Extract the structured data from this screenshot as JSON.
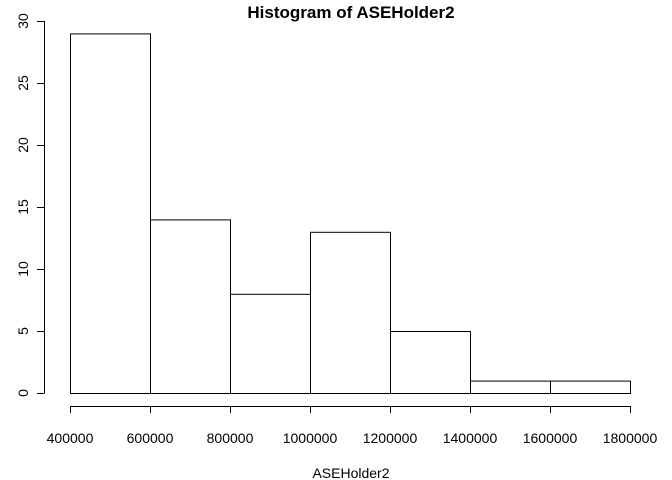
{
  "chart_data": {
    "type": "bar",
    "subtype": "histogram",
    "title": "Histogram of ASEHolder2",
    "xlabel": "ASEHolder2",
    "ylabel": "",
    "bin_edges": [
      400000,
      600000,
      800000,
      1000000,
      1200000,
      1400000,
      1600000,
      1800000
    ],
    "categories": [
      "400000-600000",
      "600000-800000",
      "800000-1000000",
      "1000000-1200000",
      "1200000-1400000",
      "1400000-1600000",
      "1600000-1800000"
    ],
    "values": [
      29,
      14,
      8,
      13,
      5,
      1,
      1
    ],
    "xlim": [
      400000,
      1800000
    ],
    "ylim": [
      0,
      30
    ],
    "xticks": [
      "400000",
      "600000",
      "800000",
      "1000000",
      "1200000",
      "1400000",
      "1600000",
      "1800000"
    ],
    "yticks": [
      "0",
      "5",
      "10",
      "15",
      "20",
      "25",
      "30"
    ],
    "grid": false,
    "colors": {
      "bar_fill": "#ffffff",
      "bar_stroke": "#000000"
    }
  }
}
